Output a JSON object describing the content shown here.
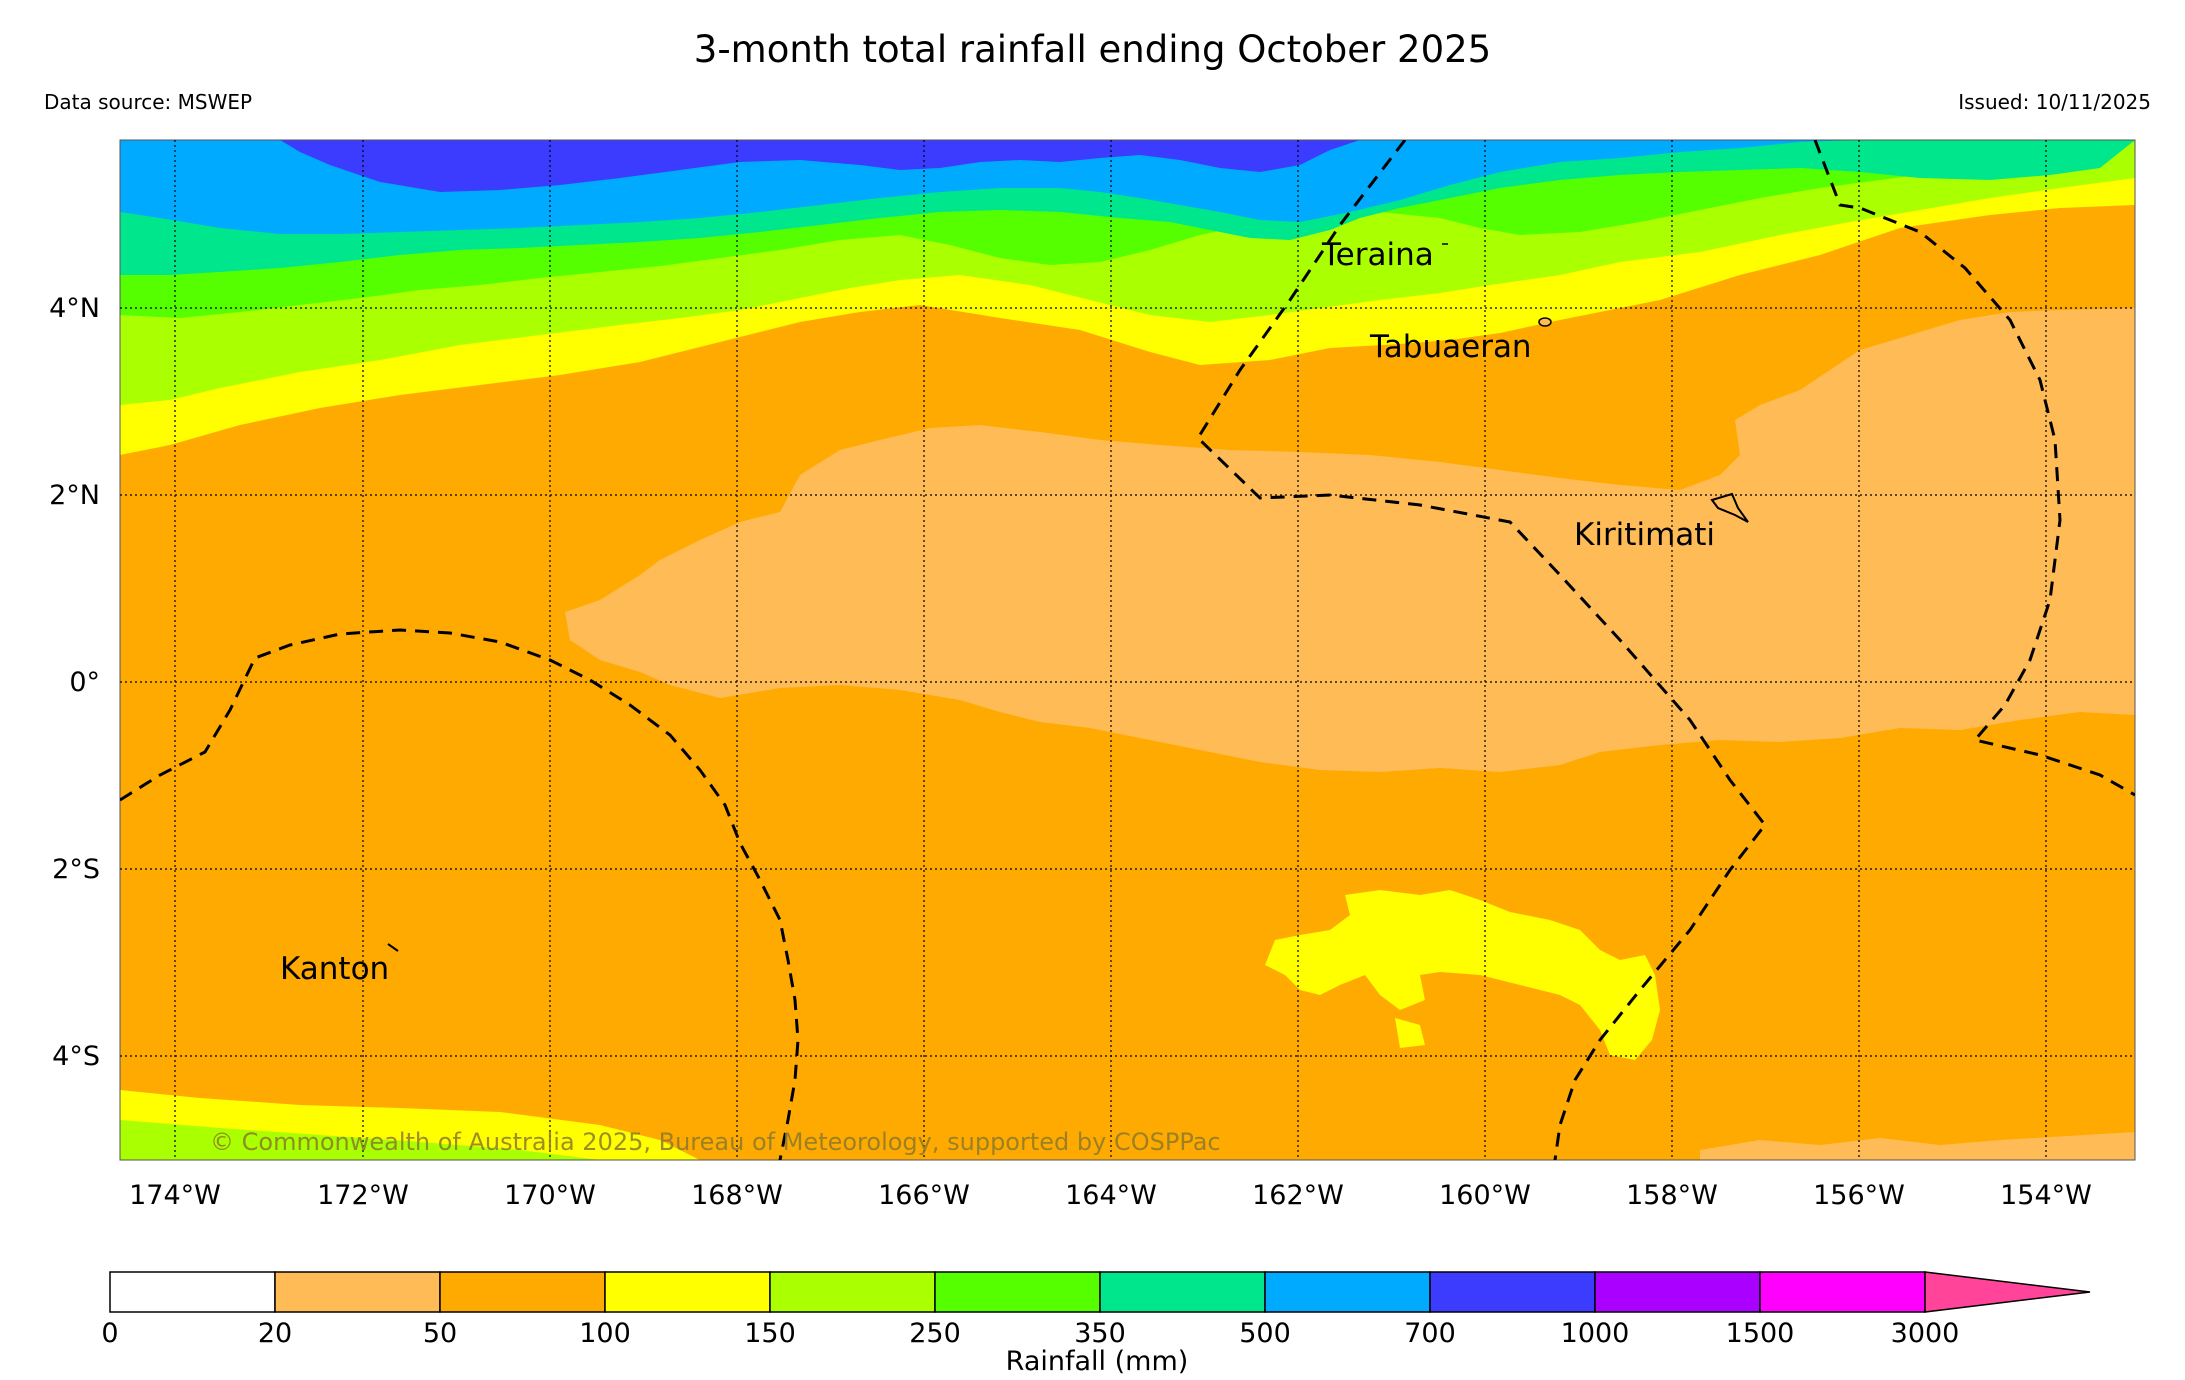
{
  "header": {
    "title": "3-month total rainfall ending October 2025",
    "data_source": "Data source: MSWEP",
    "issued": "Issued: 10/11/2025"
  },
  "map": {
    "lat_labels": [
      "4°N",
      "2°N",
      "0°",
      "2°S",
      "4°S"
    ],
    "lon_labels": [
      "174°W",
      "172°W",
      "170°W",
      "168°W",
      "166°W",
      "164°W",
      "162°W",
      "160°W",
      "158°W",
      "156°W",
      "154°W"
    ],
    "places": [
      "Teraina",
      "Tabuaeran",
      "Kiritimati",
      "Kanton"
    ],
    "copyright": "© Commonwealth of Australia 2025, Bureau of Meteorology, supported by COSPPac"
  },
  "colorbar": {
    "title": "Rainfall (mm)",
    "ticks": [
      "0",
      "20",
      "50",
      "100",
      "150",
      "250",
      "350",
      "500",
      "700",
      "1000",
      "1500",
      "3000"
    ],
    "colors": [
      "#ffffff",
      "#ffbb55",
      "#ffaa00",
      "#ffff00",
      "#aaff00",
      "#55ff00",
      "#00e68c",
      "#00aaff",
      "#3c3cff",
      "#aa00ff",
      "#ff00ff",
      "#ff4499"
    ]
  }
}
